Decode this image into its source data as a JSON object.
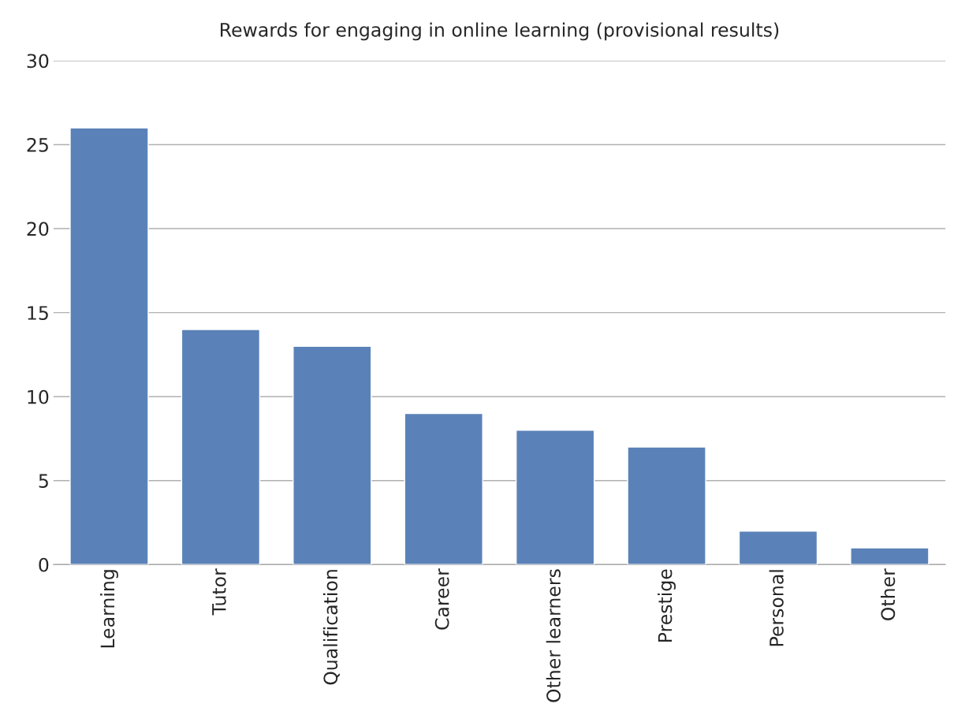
{
  "chart_data": {
    "type": "bar",
    "title": "Rewards for engaging in online learning (provisional results)",
    "categories": [
      "Learning",
      "Tutor",
      "Qualification",
      "Career",
      "Other learners",
      "Prestige",
      "Personal",
      "Other"
    ],
    "values": [
      26,
      14,
      13,
      9,
      8,
      7,
      2,
      1
    ],
    "color": "#5b82b8",
    "ylim": [
      0,
      30
    ],
    "yticks": [
      0,
      5,
      10,
      15,
      20,
      25,
      30
    ],
    "grid": "y"
  }
}
